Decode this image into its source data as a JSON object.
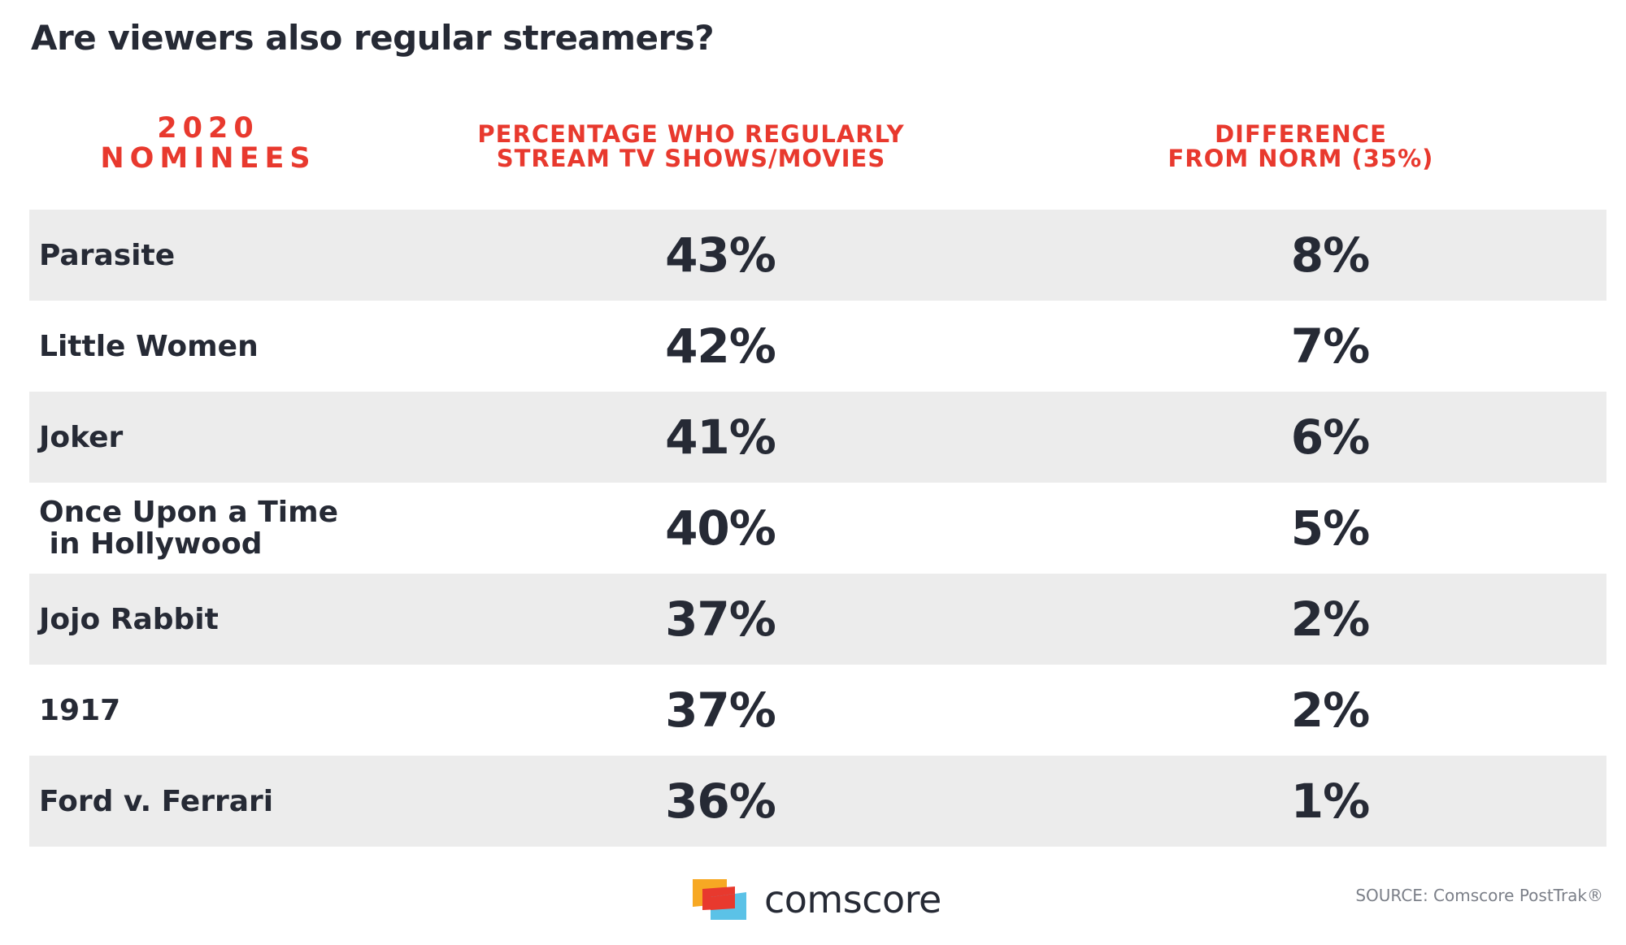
{
  "title": "Are viewers also regular streamers?",
  "chart_data": {
    "type": "table",
    "title": "Are viewers also regular streamers?",
    "columns": [
      {
        "id": "name",
        "label_lines": [
          "2020",
          "NOMINEES"
        ]
      },
      {
        "id": "pct",
        "label_lines": [
          "PERCENTAGE WHO REGULARLY",
          "STREAM TV SHOWS/MOVIES"
        ]
      },
      {
        "id": "diff",
        "label_lines": [
          "DIFFERENCE",
          "FROM NORM (35%)"
        ]
      }
    ],
    "norm": 35,
    "rows": [
      {
        "name": "Parasite",
        "pct": "43%",
        "diff": "8%",
        "pct_value": 43,
        "diff_value": 8
      },
      {
        "name": "Little Women",
        "pct": "42%",
        "diff": "7%",
        "pct_value": 42,
        "diff_value": 7
      },
      {
        "name": "Joker",
        "pct": "41%",
        "diff": "6%",
        "pct_value": 41,
        "diff_value": 6
      },
      {
        "name": "Once Upon a Time\n in Hollywood",
        "pct": "40%",
        "diff": "5%",
        "pct_value": 40,
        "diff_value": 5
      },
      {
        "name": "Jojo Rabbit",
        "pct": "37%",
        "diff": "2%",
        "pct_value": 37,
        "diff_value": 2
      },
      {
        "name": "1917",
        "pct": "37%",
        "diff": "2%",
        "pct_value": 37,
        "diff_value": 2
      },
      {
        "name": "Ford v. Ferrari",
        "pct": "36%",
        "diff": "1%",
        "pct_value": 36,
        "diff_value": 1
      }
    ]
  },
  "footer": {
    "logo_text": "comscore",
    "source": "SOURCE: Comscore PostTrak®"
  },
  "colors": {
    "accent": "#e8392e",
    "text": "#262a35",
    "row_shade": "#ececec",
    "source_text": "#7b7f88",
    "logo_orange": "#f7a823",
    "logo_red": "#e8392e",
    "logo_blue": "#5bc2e7"
  }
}
